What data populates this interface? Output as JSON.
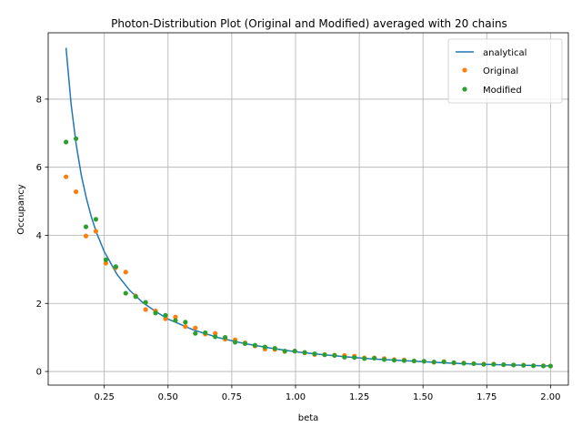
{
  "chart_data": {
    "type": "line",
    "title": "Photon-Distribution Plot (Original and Modified) averaged with 20 chains",
    "xlabel": "beta",
    "ylabel": "Occupancy",
    "xlim": [
      0.03,
      2.07
    ],
    "ylim": [
      -0.4,
      9.95
    ],
    "x_ticks": [
      0.25,
      0.5,
      0.75,
      1.0,
      1.25,
      1.5,
      1.75,
      2.0
    ],
    "x_tick_labels": [
      "0.25",
      "0.50",
      "0.75",
      "1.00",
      "1.25",
      "1.50",
      "1.75",
      "2.00"
    ],
    "y_ticks": [
      0,
      2,
      4,
      6,
      8
    ],
    "y_tick_labels": [
      "0",
      "2",
      "4",
      "6",
      "8"
    ],
    "grid": true,
    "legend_position": "top-right",
    "colors": {
      "analytical": "#1f77b4",
      "original": "#ff7f0e",
      "modified": "#2ca02c"
    },
    "series": [
      {
        "name": "analytical",
        "kind": "line",
        "x": [
          0.1,
          0.12,
          0.14,
          0.16,
          0.18,
          0.2,
          0.22,
          0.25,
          0.3,
          0.35,
          0.4,
          0.45,
          0.5,
          0.6,
          0.7,
          0.8,
          0.9,
          1.0,
          1.1,
          1.2,
          1.3,
          1.4,
          1.5,
          1.6,
          1.7,
          1.8,
          1.9,
          2.0
        ],
        "y": [
          9.51,
          7.84,
          6.66,
          5.76,
          5.08,
          4.52,
          4.07,
          3.52,
          2.85,
          2.38,
          2.03,
          1.77,
          1.54,
          1.22,
          0.99,
          0.82,
          0.69,
          0.58,
          0.5,
          0.43,
          0.37,
          0.33,
          0.29,
          0.25,
          0.22,
          0.2,
          0.18,
          0.16
        ]
      },
      {
        "name": "Original",
        "kind": "scatter",
        "x": [
          0.1,
          0.139,
          0.178,
          0.217,
          0.256,
          0.295,
          0.334,
          0.373,
          0.412,
          0.451,
          0.49,
          0.529,
          0.568,
          0.607,
          0.646,
          0.685,
          0.724,
          0.763,
          0.802,
          0.841,
          0.88,
          0.919,
          0.958,
          0.997,
          1.036,
          1.075,
          1.114,
          1.153,
          1.192,
          1.231,
          1.27,
          1.309,
          1.348,
          1.387,
          1.426,
          1.465,
          1.504,
          1.543,
          1.582,
          1.621,
          1.66,
          1.699,
          1.738,
          1.777,
          1.816,
          1.855,
          1.894,
          1.933,
          1.972,
          2.0
        ],
        "y": [
          5.72,
          5.28,
          3.98,
          4.12,
          3.18,
          3.05,
          2.92,
          2.22,
          1.82,
          1.78,
          1.55,
          1.6,
          1.32,
          1.28,
          1.1,
          1.12,
          0.95,
          0.93,
          0.84,
          0.75,
          0.66,
          0.65,
          0.59,
          0.6,
          0.55,
          0.5,
          0.5,
          0.48,
          0.47,
          0.45,
          0.4,
          0.4,
          0.38,
          0.35,
          0.34,
          0.31,
          0.3,
          0.27,
          0.29,
          0.25,
          0.25,
          0.23,
          0.22,
          0.22,
          0.2,
          0.19,
          0.19,
          0.17,
          0.17,
          0.16
        ]
      },
      {
        "name": "Modified",
        "kind": "scatter",
        "x": [
          0.1,
          0.139,
          0.178,
          0.217,
          0.256,
          0.295,
          0.334,
          0.373,
          0.412,
          0.451,
          0.49,
          0.529,
          0.568,
          0.607,
          0.646,
          0.685,
          0.724,
          0.763,
          0.802,
          0.841,
          0.88,
          0.919,
          0.958,
          0.997,
          1.036,
          1.075,
          1.114,
          1.153,
          1.192,
          1.231,
          1.27,
          1.309,
          1.348,
          1.387,
          1.426,
          1.465,
          1.504,
          1.543,
          1.582,
          1.621,
          1.66,
          1.699,
          1.738,
          1.777,
          1.816,
          1.855,
          1.894,
          1.933,
          1.972,
          2.0
        ],
        "y": [
          6.74,
          6.84,
          4.25,
          4.47,
          3.28,
          3.08,
          2.3,
          2.2,
          2.03,
          1.72,
          1.65,
          1.5,
          1.45,
          1.12,
          1.14,
          1.02,
          1.0,
          0.86,
          0.82,
          0.77,
          0.72,
          0.68,
          0.6,
          0.6,
          0.56,
          0.52,
          0.49,
          0.47,
          0.42,
          0.41,
          0.38,
          0.39,
          0.35,
          0.33,
          0.32,
          0.31,
          0.3,
          0.28,
          0.28,
          0.26,
          0.24,
          0.23,
          0.21,
          0.21,
          0.2,
          0.19,
          0.18,
          0.17,
          0.16,
          0.16
        ]
      }
    ]
  }
}
